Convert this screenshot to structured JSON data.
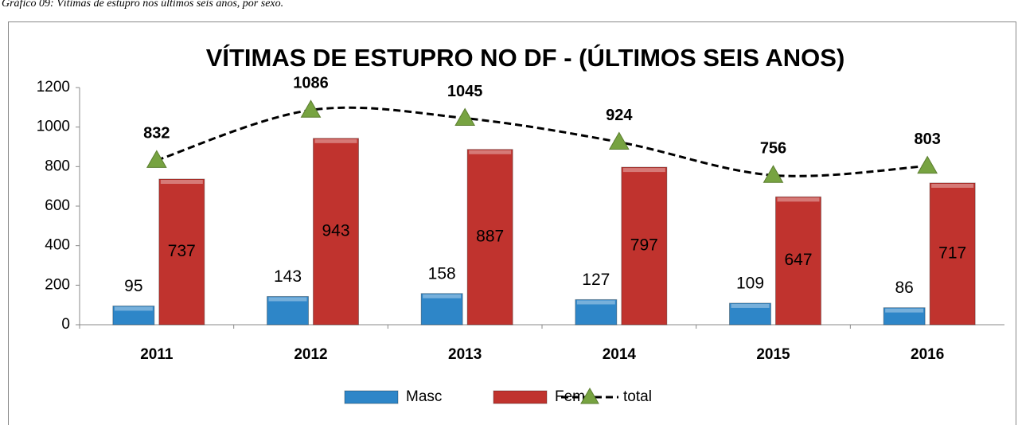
{
  "caption": "Gráfico 09: Vítimas de estupro nos últimos seis anos, por sexo.",
  "chart_data": {
    "type": "bar",
    "title": "VÍTIMAS DE ESTUPRO NO DF - (ÚLTIMOS SEIS ANOS)",
    "categories": [
      "2011",
      "2012",
      "2013",
      "2014",
      "2015",
      "2016"
    ],
    "series": [
      {
        "name": "Masc",
        "color": "#2e86c8",
        "values": [
          95,
          143,
          158,
          127,
          109,
          86
        ]
      },
      {
        "name": "Fem",
        "color": "#c0332e",
        "values": [
          737,
          943,
          887,
          797,
          647,
          717
        ]
      },
      {
        "name": "total",
        "type": "line",
        "color": "#000000",
        "marker_color": "#77a341",
        "values": [
          832,
          1086,
          1045,
          924,
          756,
          803
        ]
      }
    ],
    "ylim": [
      0,
      1200
    ],
    "yticks": [
      0,
      200,
      400,
      600,
      800,
      1000,
      1200
    ],
    "grid": false,
    "legend": "bottom"
  }
}
